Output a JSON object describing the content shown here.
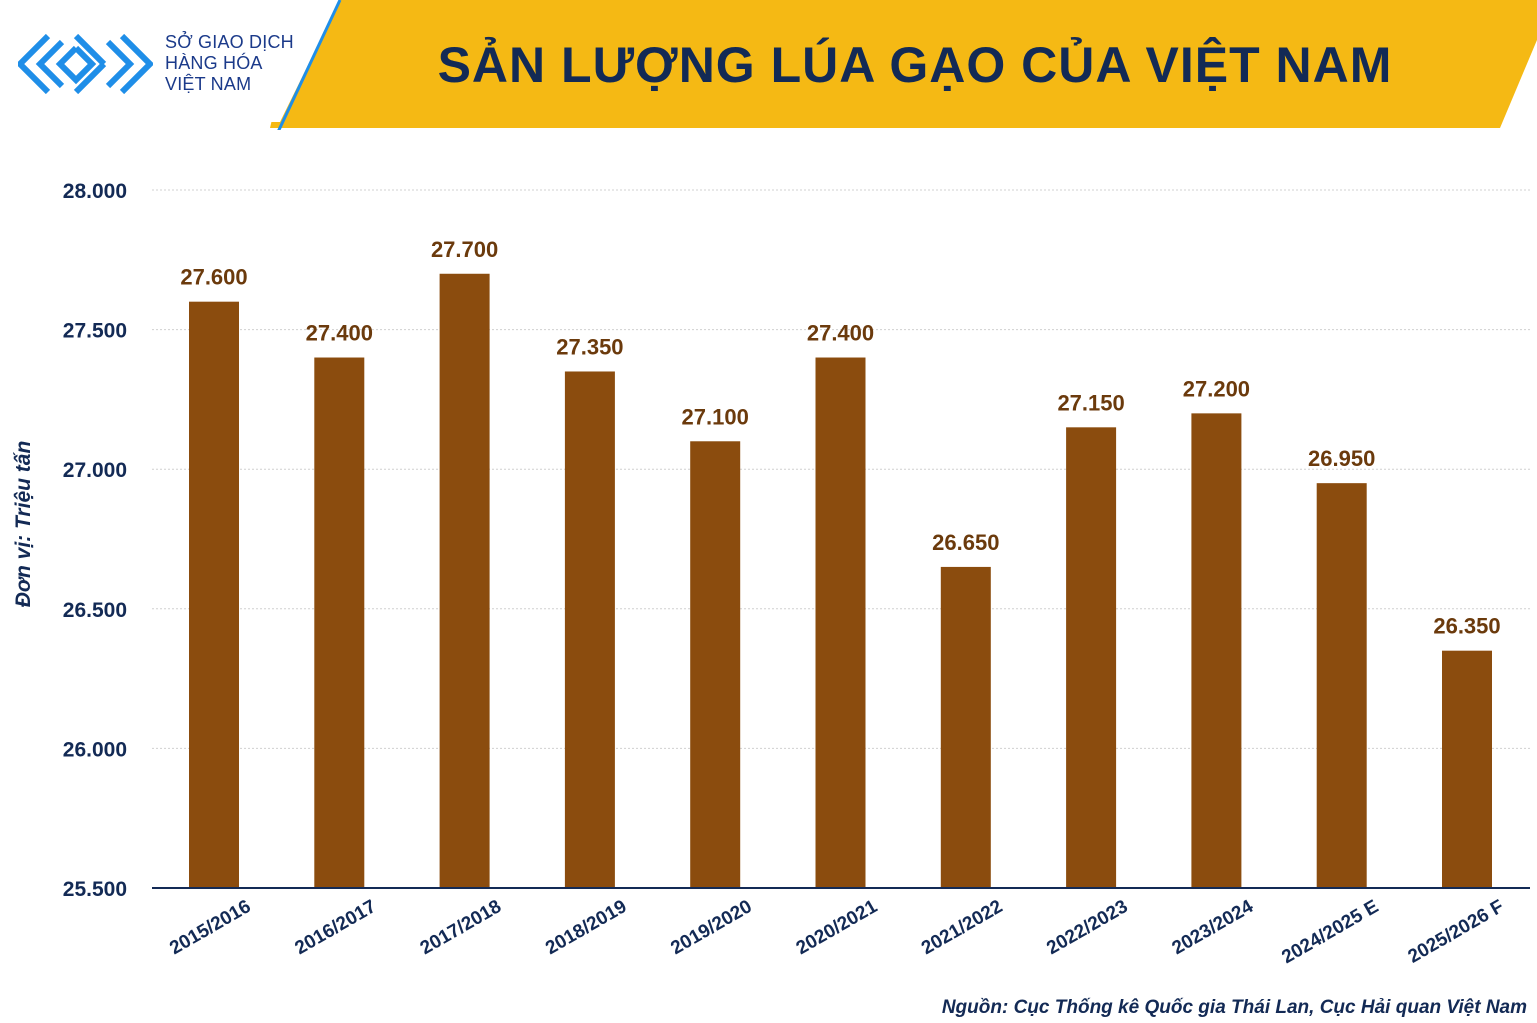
{
  "header": {
    "logo_lines": [
      "SỞ GIAO DỊCH",
      "HÀNG HÓA",
      "VIỆT NAM"
    ],
    "logo_icon": "sgd-logo-icon",
    "title": "SẢN LƯỢNG LÚA GẠO CỦA VIỆT NAM"
  },
  "colors": {
    "bar": "#8b4c0e",
    "value_label": "#6b3a0c",
    "axis_text": "#132a55",
    "header_yellow": "#f5b914",
    "logo_blue": "#1f8ee8"
  },
  "chart_data": {
    "type": "bar",
    "ylabel": "Đơn vị: Triệu tấn",
    "xlabel": "",
    "ylim": [
      25500,
      28000
    ],
    "yticks": [
      "28.000",
      "27.500",
      "27.000",
      "26.500",
      "26.000",
      "25.500"
    ],
    "ytick_values": [
      28000,
      27500,
      27000,
      26500,
      26000,
      25500
    ],
    "categories": [
      "2015/2016",
      "2016/2017",
      "2017/2018",
      "2018/2019",
      "2019/2020",
      "2020/2021",
      "2021/2022",
      "2022/2023",
      "2023/2024",
      "2024/2025 E",
      "2025/2026 F"
    ],
    "values": [
      27600,
      27400,
      27700,
      27350,
      27100,
      27400,
      26650,
      27150,
      27200,
      26950,
      26350
    ],
    "value_labels": [
      "27.600",
      "27.400",
      "27.700",
      "27.350",
      "27.100",
      "27.400",
      "26.650",
      "27.150",
      "27.200",
      "26.950",
      "26.350"
    ],
    "grid": true,
    "legend": "none"
  },
  "footer": {
    "source": "Nguồn: Cục Thống kê Quốc gia Thái Lan, Cục Hải quan Việt Nam"
  }
}
